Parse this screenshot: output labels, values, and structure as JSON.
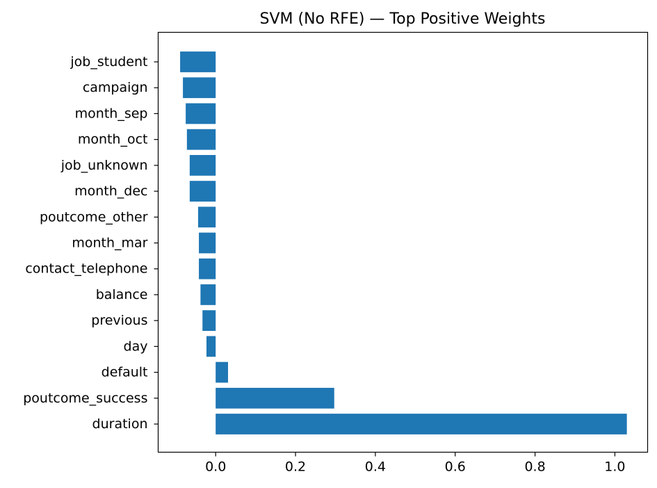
{
  "chart_data": {
    "type": "bar",
    "orientation": "horizontal",
    "title": "SVM (No RFE) — Top Positive Weights",
    "xlabel": "",
    "ylabel": "",
    "categories": [
      "job_student",
      "campaign",
      "month_sep",
      "month_oct",
      "job_unknown",
      "month_dec",
      "poutcome_other",
      "month_mar",
      "contact_telephone",
      "balance",
      "previous",
      "day",
      "default",
      "poutcome_success",
      "duration"
    ],
    "values": [
      -0.089,
      -0.082,
      -0.075,
      -0.072,
      -0.065,
      -0.065,
      -0.044,
      -0.042,
      -0.042,
      -0.038,
      -0.033,
      -0.023,
      0.031,
      0.297,
      1.03
    ],
    "xlim": [
      -0.144,
      1.082
    ],
    "xticks": [
      0.0,
      0.2,
      0.4,
      0.6,
      0.8,
      1.0
    ],
    "xtick_labels": [
      "0.0",
      "0.2",
      "0.4",
      "0.6",
      "0.8",
      "1.0"
    ],
    "bar_color": "#1f77b4",
    "grid": false,
    "legend": "none"
  }
}
